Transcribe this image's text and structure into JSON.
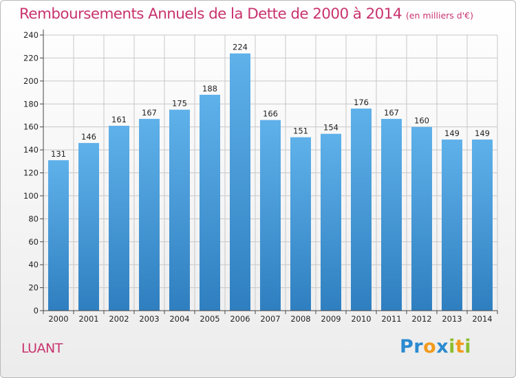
{
  "header": {
    "title": "Remboursements Annuels de la Dette de 2000 à 2014",
    "unit": "(en milliers d'€)"
  },
  "footer": {
    "commune": "LUANT",
    "logo_text": "Proxiti"
  },
  "colors": {
    "title": "#c8336e",
    "bar_top": "#5fb1ea",
    "bar_bottom": "#2f7fc0",
    "grid": "#c7c7c7"
  },
  "chart_data": {
    "type": "bar",
    "categories": [
      "2000",
      "2001",
      "2002",
      "2003",
      "2004",
      "2005",
      "2006",
      "2007",
      "2008",
      "2009",
      "2010",
      "2011",
      "2012",
      "2013",
      "2014"
    ],
    "values": [
      131,
      146,
      161,
      167,
      175,
      188,
      224,
      166,
      151,
      154,
      176,
      167,
      160,
      149,
      149
    ],
    "title": "Remboursements Annuels de la Dette de 2000 à 2014",
    "xlabel": "",
    "ylabel": "",
    "ylim": [
      0,
      240
    ],
    "yticks": [
      0,
      20,
      40,
      60,
      80,
      100,
      120,
      140,
      160,
      180,
      200,
      220,
      240
    ],
    "grid": true,
    "legend": "none"
  }
}
